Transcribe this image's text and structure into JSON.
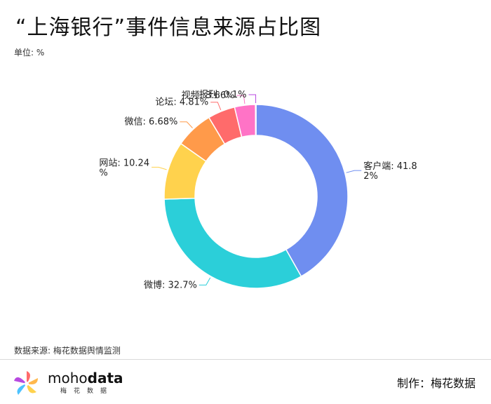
{
  "title": "“上海银行”事件信息来源占比图",
  "unit": "单位: %",
  "source": "数据来源: 梅花数据舆情监测",
  "credit": "制作：梅花数据",
  "brand": {
    "name_part1": "moho",
    "name_part2": "data",
    "subtitle": "梅花数据"
  },
  "chart_data": {
    "type": "pie",
    "donut": true,
    "slices": [
      {
        "label": "客户端",
        "value": 41.82,
        "text": "客户端: 41.8",
        "text2": "2%",
        "color": "#6f8ef0"
      },
      {
        "label": "微博",
        "value": 32.7,
        "text": "微博: 32.7%",
        "text2": "",
        "color": "#2bcfd9"
      },
      {
        "label": "网站",
        "value": 10.24,
        "text": "网站: 10.24",
        "text2": "%",
        "color": "#ffd24d"
      },
      {
        "label": "微信",
        "value": 6.68,
        "text": "微信: 6.68%",
        "text2": "",
        "color": "#ff9a4a"
      },
      {
        "label": "论坛",
        "value": 4.81,
        "text": "论坛: 4.81%",
        "text2": "",
        "color": "#ff6b6b"
      },
      {
        "label": "视频",
        "value": 3.66,
        "text": "视频: 3.66%",
        "text2": "",
        "color": "#ff73c6"
      },
      {
        "label": "报刊",
        "value": 0.1,
        "text": "报刊: 0.1%",
        "text2": "",
        "color": "#b84ae0"
      }
    ]
  }
}
